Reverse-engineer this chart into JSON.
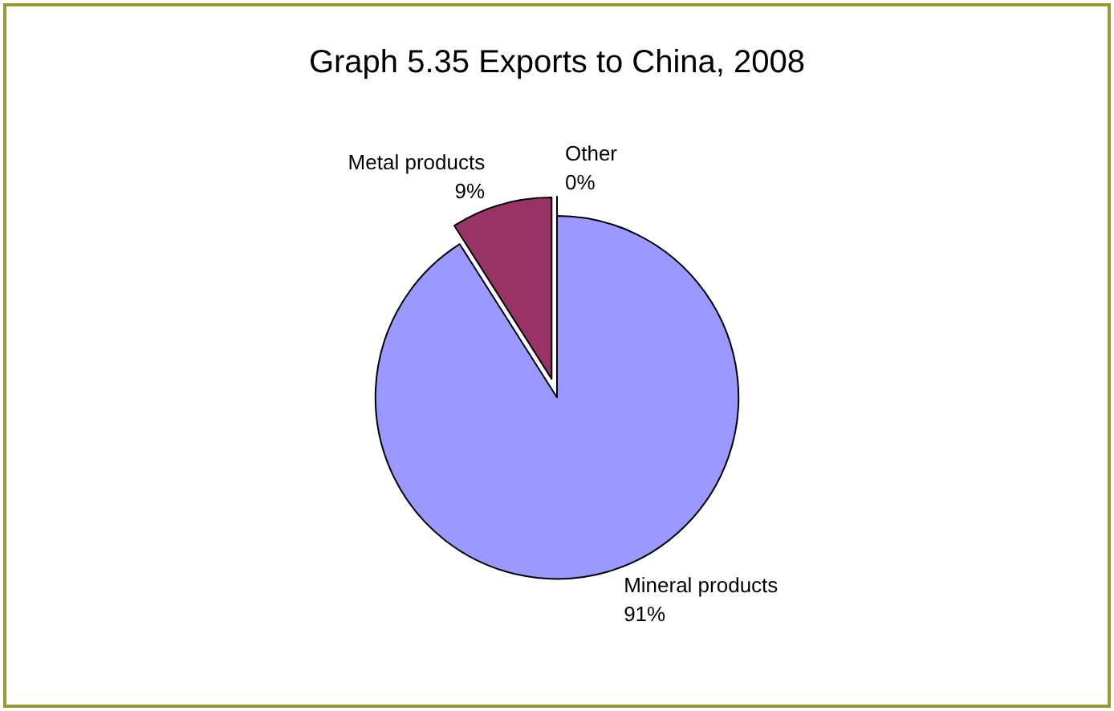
{
  "chart_data": {
    "type": "pie",
    "title": "Graph 5.35 Exports to China, 2008",
    "categories": [
      "Mineral products",
      "Metal products",
      "Other"
    ],
    "values": [
      91,
      9,
      0
    ],
    "colors": [
      "#9999ff",
      "#993366",
      "#ffffcc"
    ],
    "value_labels": [
      "91%",
      "9%",
      "0%"
    ],
    "legend": false
  }
}
